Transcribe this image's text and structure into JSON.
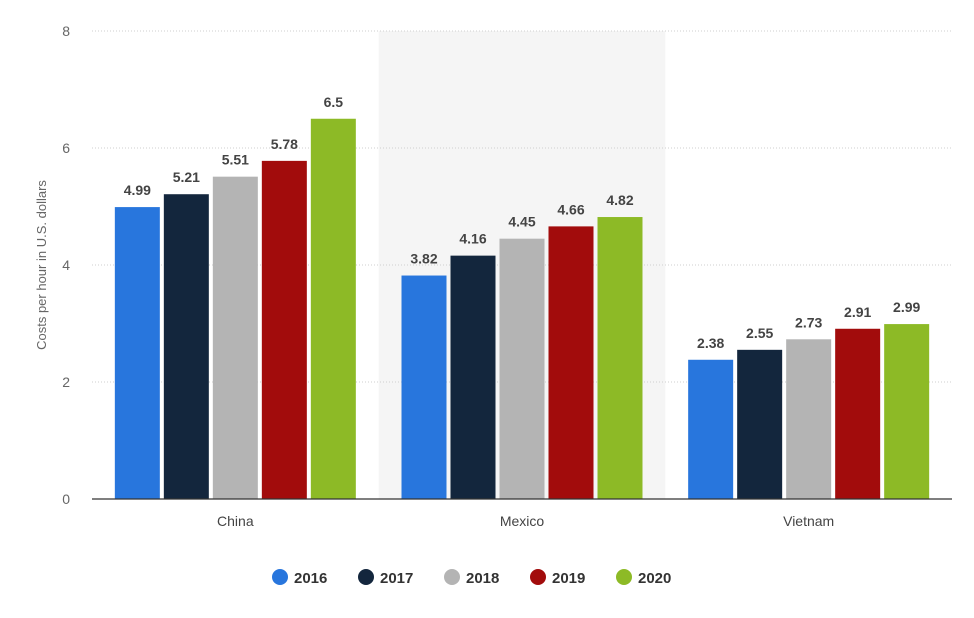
{
  "chart_data": {
    "type": "bar",
    "title": "",
    "xlabel": "",
    "ylabel": "Costs per hour in U.S. dollars",
    "ylim": [
      0,
      8
    ],
    "yticks": [
      0,
      2,
      4,
      6,
      8
    ],
    "grid": true,
    "legend_position": "bottom",
    "highlighted_category": "Mexico",
    "categories": [
      "China",
      "Mexico",
      "Vietnam"
    ],
    "series": [
      {
        "name": "2016",
        "color": "#2876dd",
        "values": [
          4.99,
          3.82,
          2.38
        ]
      },
      {
        "name": "2017",
        "color": "#13263d",
        "values": [
          5.21,
          4.16,
          2.55
        ]
      },
      {
        "name": "2018",
        "color": "#b4b4b4",
        "values": [
          5.51,
          4.45,
          2.73
        ]
      },
      {
        "name": "2019",
        "color": "#a20c0c",
        "values": [
          5.78,
          4.66,
          2.91
        ]
      },
      {
        "name": "2020",
        "color": "#8dba26",
        "values": [
          6.5,
          4.82,
          2.99
        ]
      }
    ]
  }
}
